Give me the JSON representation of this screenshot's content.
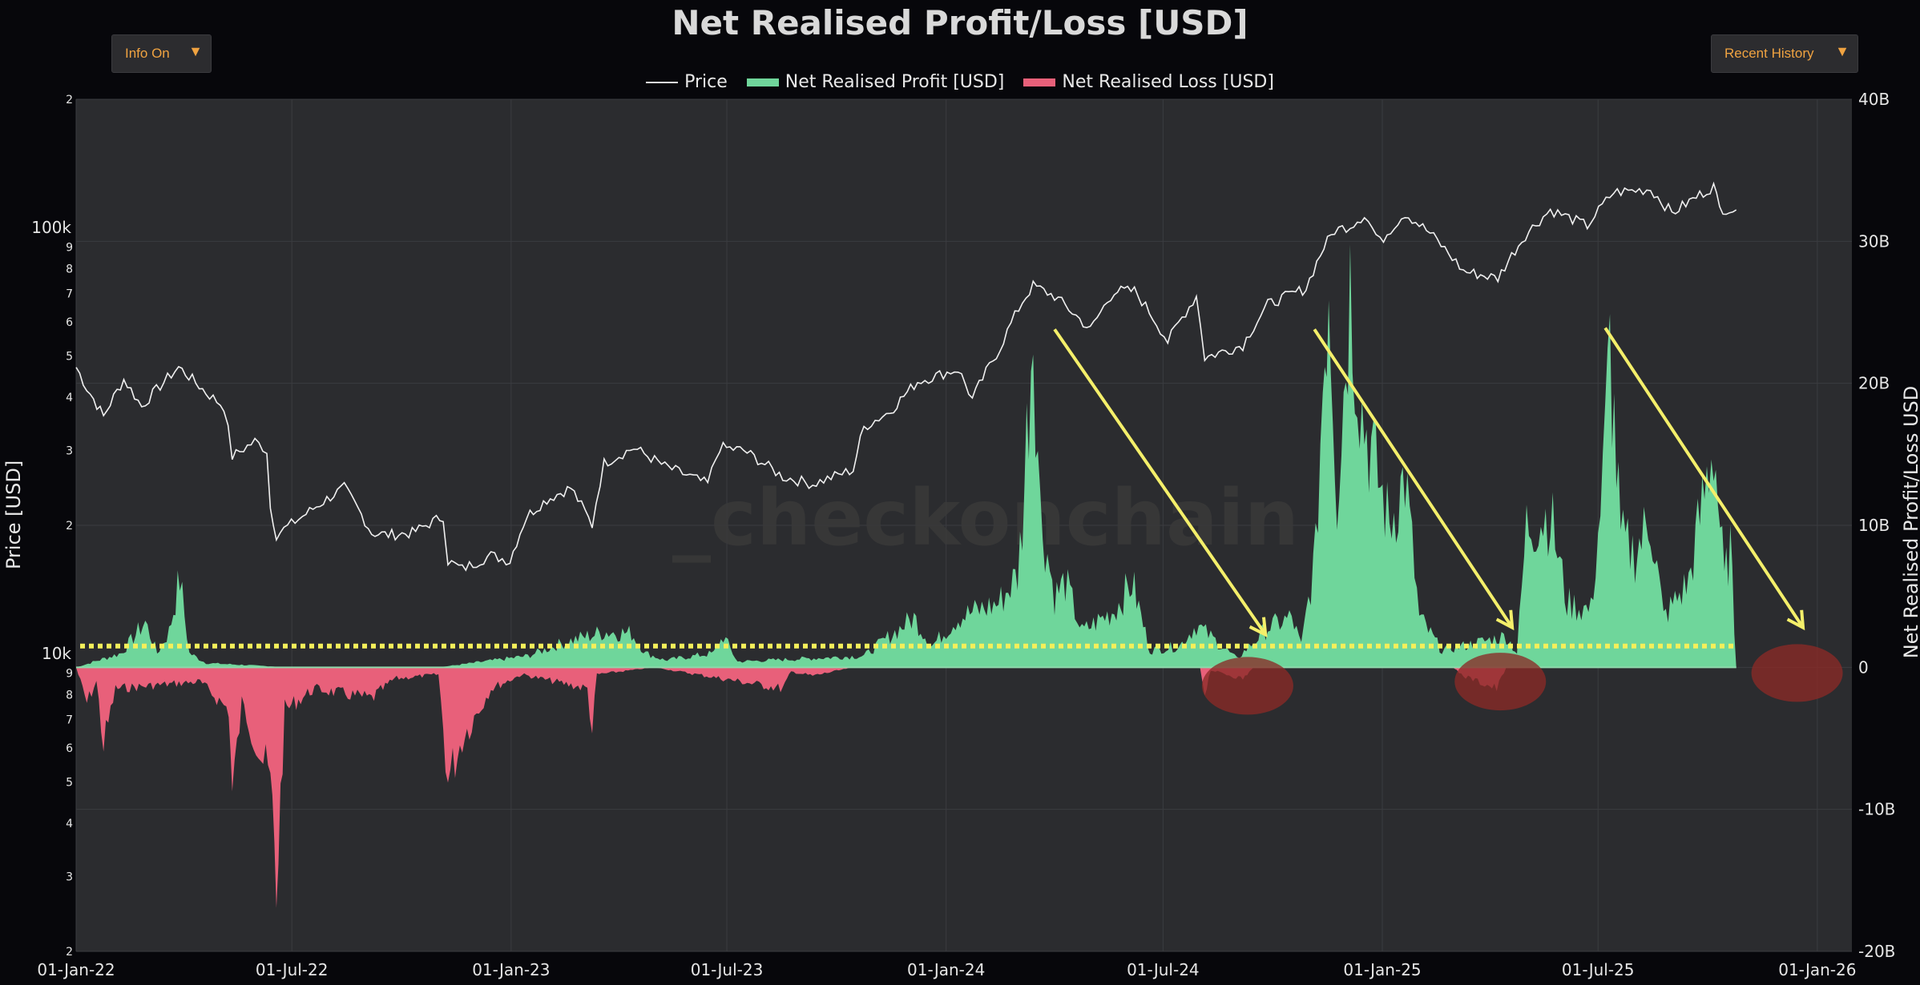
{
  "header": {
    "title": "Net Realised Profit/Loss [USD]",
    "info_button": "Info On",
    "range_button": "Recent History",
    "dropdown_arrow": "▼"
  },
  "legend": {
    "price": "Price",
    "profit": "Net Realised Profit [USD]",
    "loss": "Net Realised Loss [USD]"
  },
  "watermark": "_checkonchain",
  "colors": {
    "background": "#07070b",
    "plot": "#2b2c2f",
    "profit": "#6fd69b",
    "loss": "#e8607a",
    "price": "#f0f0f0",
    "threshold": "#f4ef5a",
    "annotation_arrow": "#f4ef6a",
    "annotation_circle": "#8b2a27",
    "accent": "#f0a341"
  },
  "chart_data": {
    "type": "area",
    "title": "Net Realised Profit/Loss [USD]",
    "x_ticks": [
      "01-Jan-22",
      "01-Jul-22",
      "01-Jan-23",
      "01-Jul-23",
      "01-Jan-24",
      "01-Jul-24",
      "01-Jan-25",
      "01-Jul-25",
      "01-Jan-26"
    ],
    "x_range": [
      "2022-01-01",
      "2026-01-30"
    ],
    "y_left": {
      "label": "Price [USD]",
      "scale": "log",
      "range": [
        2000,
        200000
      ],
      "major_ticks": [
        {
          "value": 10000,
          "label": "10k"
        },
        {
          "value": 100000,
          "label": "100k"
        }
      ],
      "minor_ticks": [
        {
          "value": 2000,
          "label": "2"
        },
        {
          "value": 3000,
          "label": "3"
        },
        {
          "value": 4000,
          "label": "4"
        },
        {
          "value": 5000,
          "label": "5"
        },
        {
          "value": 6000,
          "label": "6"
        },
        {
          "value": 7000,
          "label": "7"
        },
        {
          "value": 8000,
          "label": "8"
        },
        {
          "value": 9000,
          "label": "9"
        },
        {
          "value": 20000,
          "label": "2"
        },
        {
          "value": 30000,
          "label": "3"
        },
        {
          "value": 40000,
          "label": "4"
        },
        {
          "value": 50000,
          "label": "5"
        },
        {
          "value": 60000,
          "label": "6"
        },
        {
          "value": 70000,
          "label": "7"
        },
        {
          "value": 80000,
          "label": "8"
        },
        {
          "value": 90000,
          "label": "9"
        },
        {
          "value": 200000,
          "label": "2"
        }
      ]
    },
    "y_right": {
      "label": "Net Realised Profit/Loss USD",
      "range": [
        -20,
        40
      ],
      "unit_scale": "billions",
      "ticks": [
        {
          "value": 40,
          "label": "40B"
        },
        {
          "value": 30,
          "label": "30B"
        },
        {
          "value": 20,
          "label": "20B"
        },
        {
          "value": 10,
          "label": "10B"
        },
        {
          "value": 0,
          "label": "0"
        },
        {
          "value": -10,
          "label": "-10B"
        },
        {
          "value": -20,
          "label": "-20B"
        }
      ]
    },
    "threshold_line": {
      "value_b": 1.5,
      "x_start": "2022-01-01",
      "x_end": "2025-10-25"
    },
    "series": [
      {
        "name": "Price",
        "axis": "left",
        "points": [
          [
            "2022-01-01",
            47000
          ],
          [
            "2022-01-10",
            42000
          ],
          [
            "2022-01-24",
            36000
          ],
          [
            "2022-02-10",
            44000
          ],
          [
            "2022-02-25",
            38000
          ],
          [
            "2022-03-28",
            47000
          ],
          [
            "2022-04-20",
            41000
          ],
          [
            "2022-05-05",
            38000
          ],
          [
            "2022-05-12",
            29000
          ],
          [
            "2022-05-31",
            31500
          ],
          [
            "2022-06-10",
            30000
          ],
          [
            "2022-06-13",
            22000
          ],
          [
            "2022-06-18",
            19000
          ],
          [
            "2022-07-10",
            21000
          ],
          [
            "2022-08-14",
            24500
          ],
          [
            "2022-09-06",
            19200
          ],
          [
            "2022-09-20",
            19000
          ],
          [
            "2022-10-10",
            19200
          ],
          [
            "2022-11-05",
            21000
          ],
          [
            "2022-11-09",
            16500
          ],
          [
            "2022-11-21",
            15800
          ],
          [
            "2022-12-15",
            17000
          ],
          [
            "2022-12-31",
            16500
          ],
          [
            "2023-01-14",
            21000
          ],
          [
            "2023-01-31",
            23000
          ],
          [
            "2023-02-20",
            24500
          ],
          [
            "2023-03-10",
            20000
          ],
          [
            "2023-03-20",
            28000
          ],
          [
            "2023-04-14",
            30400
          ],
          [
            "2023-05-10",
            27500
          ],
          [
            "2023-06-15",
            25000
          ],
          [
            "2023-06-25",
            30500
          ],
          [
            "2023-07-15",
            30000
          ],
          [
            "2023-08-17",
            26000
          ],
          [
            "2023-09-11",
            25000
          ],
          [
            "2023-10-15",
            27000
          ],
          [
            "2023-10-24",
            34000
          ],
          [
            "2023-11-15",
            37000
          ],
          [
            "2023-12-08",
            43500
          ],
          [
            "2024-01-11",
            46500
          ],
          [
            "2024-01-23",
            39500
          ],
          [
            "2024-02-15",
            52000
          ],
          [
            "2024-03-05",
            67000
          ],
          [
            "2024-03-14",
            73000
          ],
          [
            "2024-04-01",
            69000
          ],
          [
            "2024-05-01",
            57500
          ],
          [
            "2024-05-21",
            71000
          ],
          [
            "2024-06-07",
            71000
          ],
          [
            "2024-07-05",
            54000
          ],
          [
            "2024-07-29",
            69000
          ],
          [
            "2024-08-05",
            49500
          ],
          [
            "2024-09-06",
            53000
          ],
          [
            "2024-09-27",
            66000
          ],
          [
            "2024-10-29",
            72000
          ],
          [
            "2024-11-13",
            90000
          ],
          [
            "2024-11-22",
            98500
          ],
          [
            "2024-12-05",
            101000
          ],
          [
            "2024-12-17",
            107000
          ],
          [
            "2024-12-30",
            92500
          ],
          [
            "2025-01-20",
            108000
          ],
          [
            "2025-02-10",
            97000
          ],
          [
            "2025-03-10",
            79000
          ],
          [
            "2025-04-08",
            76000
          ],
          [
            "2025-05-01",
            96000
          ],
          [
            "2025-05-22",
            110000
          ],
          [
            "2025-06-22",
            101000
          ],
          [
            "2025-07-14",
            121000
          ],
          [
            "2025-08-14",
            123000
          ],
          [
            "2025-09-01",
            108000
          ],
          [
            "2025-10-06",
            125000
          ],
          [
            "2025-10-11",
            111000
          ],
          [
            "2025-10-25",
            110000
          ]
        ]
      },
      {
        "name": "Net Realised Profit [USD]",
        "axis": "right",
        "points": [
          [
            "2022-01-01",
            0.0
          ],
          [
            "2022-02-08",
            1.0
          ],
          [
            "2022-02-28",
            3.2
          ],
          [
            "2022-03-10",
            1.0
          ],
          [
            "2022-03-20",
            2.5
          ],
          [
            "2022-03-29",
            6.3
          ],
          [
            "2022-04-06",
            1.0
          ],
          [
            "2022-04-20",
            0.3
          ],
          [
            "2022-07-01",
            0.0
          ],
          [
            "2022-11-01",
            0.0
          ],
          [
            "2023-01-15",
            0.8
          ],
          [
            "2023-02-16",
            1.8
          ],
          [
            "2023-03-20",
            2.5
          ],
          [
            "2023-04-12",
            2.4
          ],
          [
            "2023-04-24",
            1.0
          ],
          [
            "2023-05-10",
            0.5
          ],
          [
            "2023-06-20",
            1.0
          ],
          [
            "2023-06-28",
            2.2
          ],
          [
            "2023-07-10",
            0.4
          ],
          [
            "2023-10-24",
            0.8
          ],
          [
            "2023-12-05",
            3.5
          ],
          [
            "2023-12-20",
            1.5
          ],
          [
            "2024-01-11",
            3.5
          ],
          [
            "2024-02-14",
            4.5
          ],
          [
            "2024-03-01",
            6.5
          ],
          [
            "2024-03-05",
            10.5
          ],
          [
            "2024-03-14",
            25.0
          ],
          [
            "2024-03-20",
            11.0
          ],
          [
            "2024-04-01",
            5.0
          ],
          [
            "2024-04-10",
            6.0
          ],
          [
            "2024-04-24",
            2.5
          ],
          [
            "2024-05-21",
            4.0
          ],
          [
            "2024-06-05",
            6.0
          ],
          [
            "2024-06-20",
            1.2
          ],
          [
            "2024-07-15",
            1.5
          ],
          [
            "2024-07-29",
            3.0
          ],
          [
            "2024-09-01",
            0.6
          ],
          [
            "2024-09-27",
            2.8
          ],
          [
            "2024-10-17",
            3.5
          ],
          [
            "2024-10-25",
            1.5
          ],
          [
            "2024-11-06",
            8.0
          ],
          [
            "2024-11-12",
            20.0
          ],
          [
            "2024-11-17",
            28.0
          ],
          [
            "2024-11-24",
            12.0
          ],
          [
            "2024-12-05",
            27.0
          ],
          [
            "2024-12-15",
            18.0
          ],
          [
            "2025-01-07",
            10.0
          ],
          [
            "2025-01-20",
            13.5
          ],
          [
            "2025-02-01",
            3.5
          ],
          [
            "2025-02-20",
            1.2
          ],
          [
            "2025-03-10",
            1.5
          ],
          [
            "2025-04-15",
            2.2
          ],
          [
            "2025-04-24",
            1.0
          ],
          [
            "2025-05-02",
            10.0
          ],
          [
            "2025-05-22",
            10.8
          ],
          [
            "2025-06-05",
            4.5
          ],
          [
            "2025-06-25",
            4.0
          ],
          [
            "2025-07-05",
            13.0
          ],
          [
            "2025-07-11",
            22.5
          ],
          [
            "2025-07-20",
            9.0
          ],
          [
            "2025-08-01",
            8.0
          ],
          [
            "2025-08-14",
            10.5
          ],
          [
            "2025-08-25",
            3.5
          ],
          [
            "2025-09-15",
            6.0
          ],
          [
            "2025-10-06",
            16.0
          ],
          [
            "2025-10-15",
            6.0
          ],
          [
            "2025-10-20",
            8.5
          ],
          [
            "2025-10-25",
            0.0
          ]
        ]
      },
      {
        "name": "Net Realised Loss [USD]",
        "axis": "right",
        "points": [
          [
            "2022-01-01",
            0.0
          ],
          [
            "2022-01-10",
            -2.5
          ],
          [
            "2022-01-18",
            -1.0
          ],
          [
            "2022-01-24",
            -5.5
          ],
          [
            "2022-02-03",
            -1.5
          ],
          [
            "2022-04-15",
            -1.0
          ],
          [
            "2022-05-09",
            -3.0
          ],
          [
            "2022-05-12",
            -9.0
          ],
          [
            "2022-05-20",
            -2.5
          ],
          [
            "2022-06-13",
            -8.0
          ],
          [
            "2022-06-18",
            -15.5
          ],
          [
            "2022-06-25",
            -3.0
          ],
          [
            "2022-07-20",
            -1.5
          ],
          [
            "2022-09-06",
            -2.2
          ],
          [
            "2022-09-25",
            -0.8
          ],
          [
            "2022-11-01",
            -0.5
          ],
          [
            "2022-11-09",
            -8.0
          ],
          [
            "2022-11-21",
            -5.0
          ],
          [
            "2022-12-15",
            -1.5
          ],
          [
            "2023-01-10",
            -0.5
          ],
          [
            "2023-03-06",
            -1.5
          ],
          [
            "2023-03-10",
            -4.5
          ],
          [
            "2023-03-14",
            -0.5
          ],
          [
            "2023-05-01",
            0.0
          ],
          [
            "2023-08-17",
            -1.5
          ],
          [
            "2023-08-24",
            -0.3
          ],
          [
            "2023-09-11",
            -0.6
          ],
          [
            "2023-10-15",
            0.0
          ],
          [
            "2024-08-01",
            0.0
          ],
          [
            "2024-08-05",
            -1.8
          ],
          [
            "2024-08-10",
            -0.2
          ],
          [
            "2024-09-06",
            -0.8
          ],
          [
            "2024-09-15",
            0.0
          ],
          [
            "2025-03-01",
            0.0
          ],
          [
            "2025-03-10",
            -0.6
          ],
          [
            "2025-04-07",
            -1.5
          ],
          [
            "2025-04-15",
            0.0
          ],
          [
            "2025-10-25",
            0.0
          ]
        ]
      }
    ],
    "annotations": {
      "arrows": [
        {
          "from": [
            "2024-04-01",
            23.8
          ],
          "to": [
            "2024-09-25",
            2.3
          ]
        },
        {
          "from": [
            "2024-11-05",
            23.8
          ],
          "to": [
            "2025-04-20",
            2.8
          ]
        },
        {
          "from": [
            "2025-07-07",
            23.9
          ],
          "to": [
            "2025-12-20",
            2.8
          ]
        }
      ],
      "circles": [
        {
          "center": [
            "2024-09-10",
            -1.3
          ]
        },
        {
          "center": [
            "2025-04-10",
            -1.0
          ]
        },
        {
          "center": [
            "2025-12-15",
            -0.4
          ]
        }
      ]
    }
  }
}
